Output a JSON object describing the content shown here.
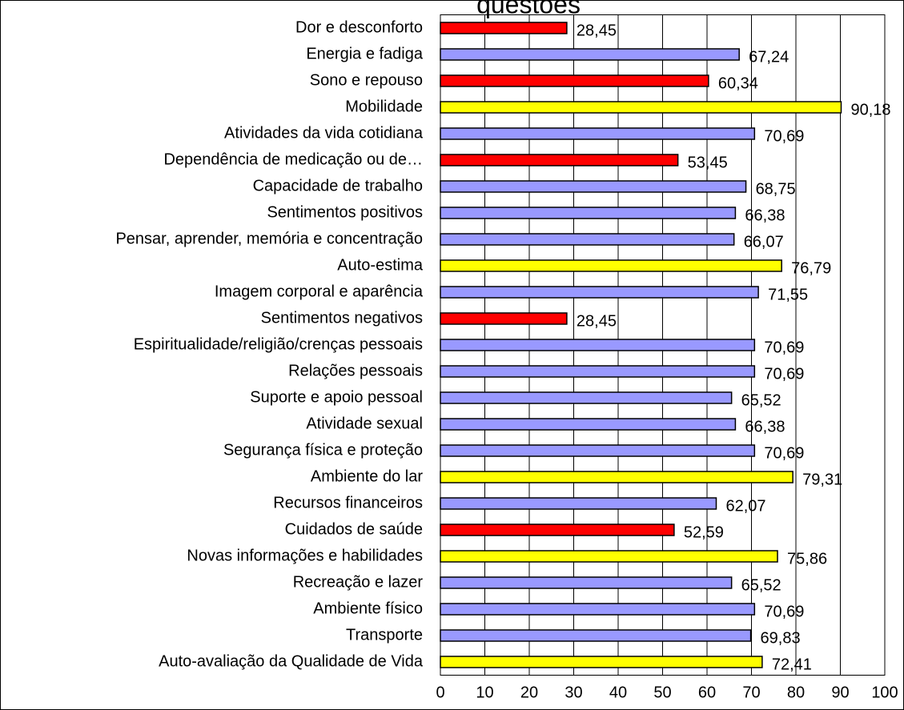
{
  "chart_data": {
    "type": "bar",
    "orientation": "horizontal",
    "title": "questões",
    "categories": [
      "Dor e desconforto",
      "Energia e fadiga",
      "Sono e repouso",
      "Mobilidade",
      "Atividades da vida cotidiana",
      "Dependência de medicação ou de…",
      "Capacidade de trabalho",
      "Sentimentos positivos",
      "Pensar, aprender, memória e concentração",
      "Auto-estima",
      "Imagem corporal e aparência",
      "Sentimentos negativos",
      "Espiritualidade/religião/crenças pessoais",
      "Relações pessoais",
      "Suporte e apoio pessoal",
      "Atividade sexual",
      "Segurança física e proteção",
      "Ambiente do lar",
      "Recursos financeiros",
      "Cuidados de saúde",
      "Novas informações e habilidades",
      "Recreação e lazer",
      "Ambiente físico",
      "Transporte",
      "Auto-avaliação da Qualidade de Vida"
    ],
    "values": [
      28.45,
      67.24,
      60.34,
      90.18,
      70.69,
      53.45,
      68.75,
      66.38,
      66.07,
      76.79,
      71.55,
      28.45,
      70.69,
      70.69,
      65.52,
      66.38,
      70.69,
      79.31,
      62.07,
      52.59,
      75.86,
      65.52,
      70.69,
      69.83,
      72.41
    ],
    "value_labels": [
      "28,45",
      "67,24",
      "60,34",
      "90,18",
      "70,69",
      "53,45",
      "68,75",
      "66,38",
      "66,07",
      "76,79",
      "71,55",
      "28,45",
      "70,69",
      "70,69",
      "65,52",
      "66,38",
      "70,69",
      "79,31",
      "62,07",
      "52,59",
      "75,86",
      "65,52",
      "70,69",
      "69,83",
      "72,41"
    ],
    "colors": [
      "#ff0000",
      "#9999ff",
      "#ff0000",
      "#ffff00",
      "#9999ff",
      "#ff0000",
      "#9999ff",
      "#9999ff",
      "#9999ff",
      "#ffff00",
      "#9999ff",
      "#ff0000",
      "#9999ff",
      "#9999ff",
      "#9999ff",
      "#9999ff",
      "#9999ff",
      "#ffff00",
      "#9999ff",
      "#ff0000",
      "#ffff00",
      "#9999ff",
      "#9999ff",
      "#9999ff",
      "#ffff00"
    ],
    "xlim": [
      0,
      100
    ],
    "xticks": [
      0,
      10,
      20,
      30,
      40,
      50,
      60,
      70,
      80,
      90,
      100
    ],
    "grid": true
  }
}
